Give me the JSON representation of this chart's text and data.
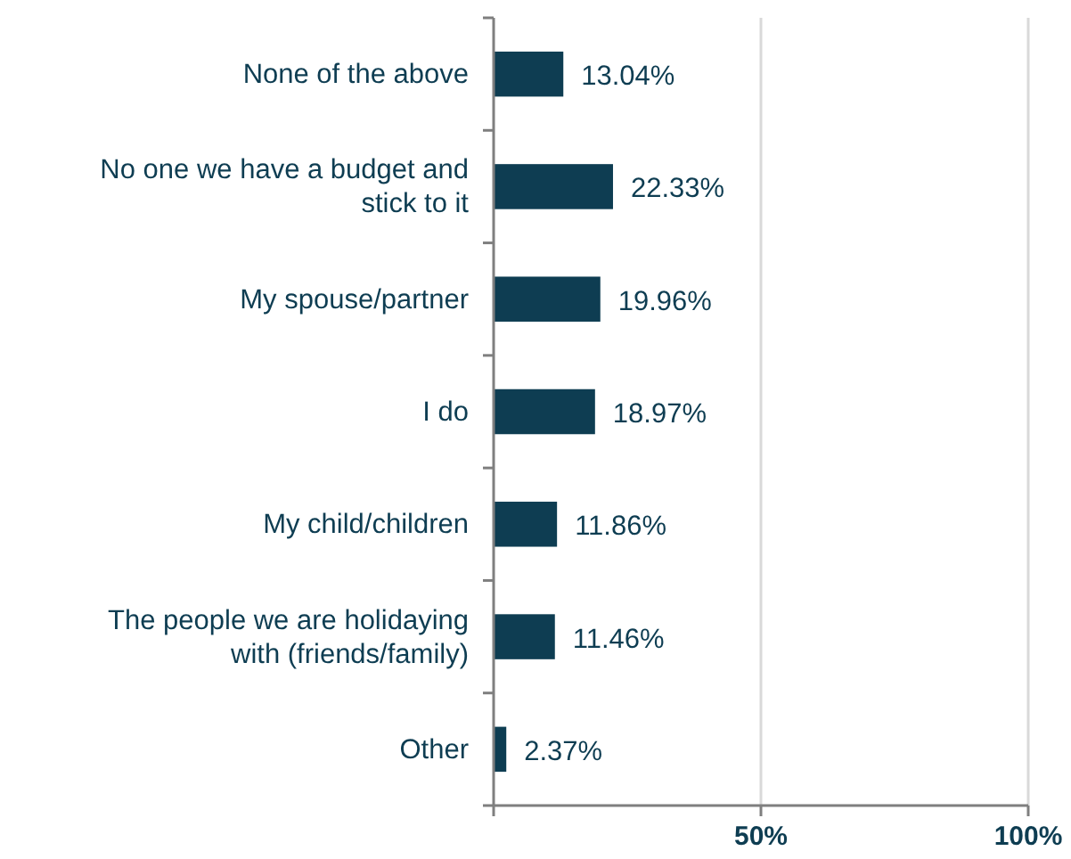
{
  "chart_data": {
    "type": "bar",
    "orientation": "horizontal",
    "categories": [
      "None of the above",
      "No one we have a budget and stick to it",
      "My spouse/partner",
      "I do",
      "My child/children",
      "The people we are holidaying with (friends/family)",
      "Other"
    ],
    "values": [
      13.04,
      22.33,
      19.96,
      18.97,
      11.86,
      11.46,
      2.37
    ],
    "value_labels": [
      "13.04%",
      "22.33%",
      "19.96%",
      "18.97%",
      "11.86%",
      "11.46%",
      "2.37%"
    ],
    "color": "#0e3d52",
    "xlim": [
      0,
      100
    ],
    "xticks": [
      {
        "value": 0,
        "label": null
      },
      {
        "value": 50,
        "label": "50%"
      },
      {
        "value": 100,
        "label": "100%"
      }
    ],
    "grid": "x"
  }
}
